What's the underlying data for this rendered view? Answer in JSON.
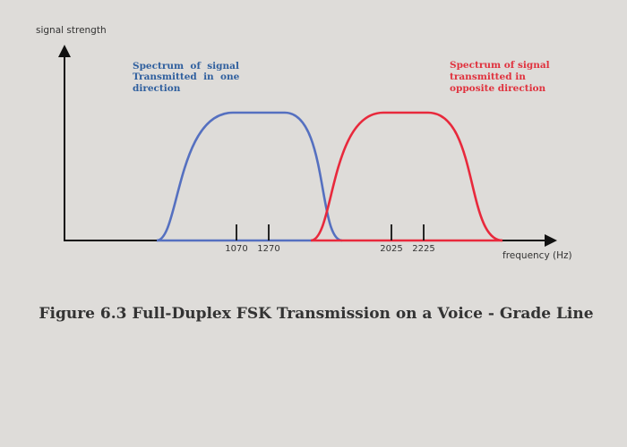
{
  "axes": {
    "y_label": "signal strength",
    "x_label": "frequency (Hz)"
  },
  "ticks": [
    "1070",
    "1270",
    "2025",
    "2225"
  ],
  "annotations": {
    "left": {
      "lines": [
        "Spectrum  of  signal",
        "Transmitted  in  one",
        "direction"
      ],
      "color": "#2f5f9e"
    },
    "right": {
      "lines": [
        "Spectrum of signal",
        "transmitted in",
        "opposite direction"
      ],
      "color": "#e0323e"
    }
  },
  "curves": {
    "left_color": "#5570c0",
    "right_color": "#e8293c"
  },
  "caption": "Figure 6.3 Full-Duplex FSK Transmission on a Voice - Grade Line"
}
